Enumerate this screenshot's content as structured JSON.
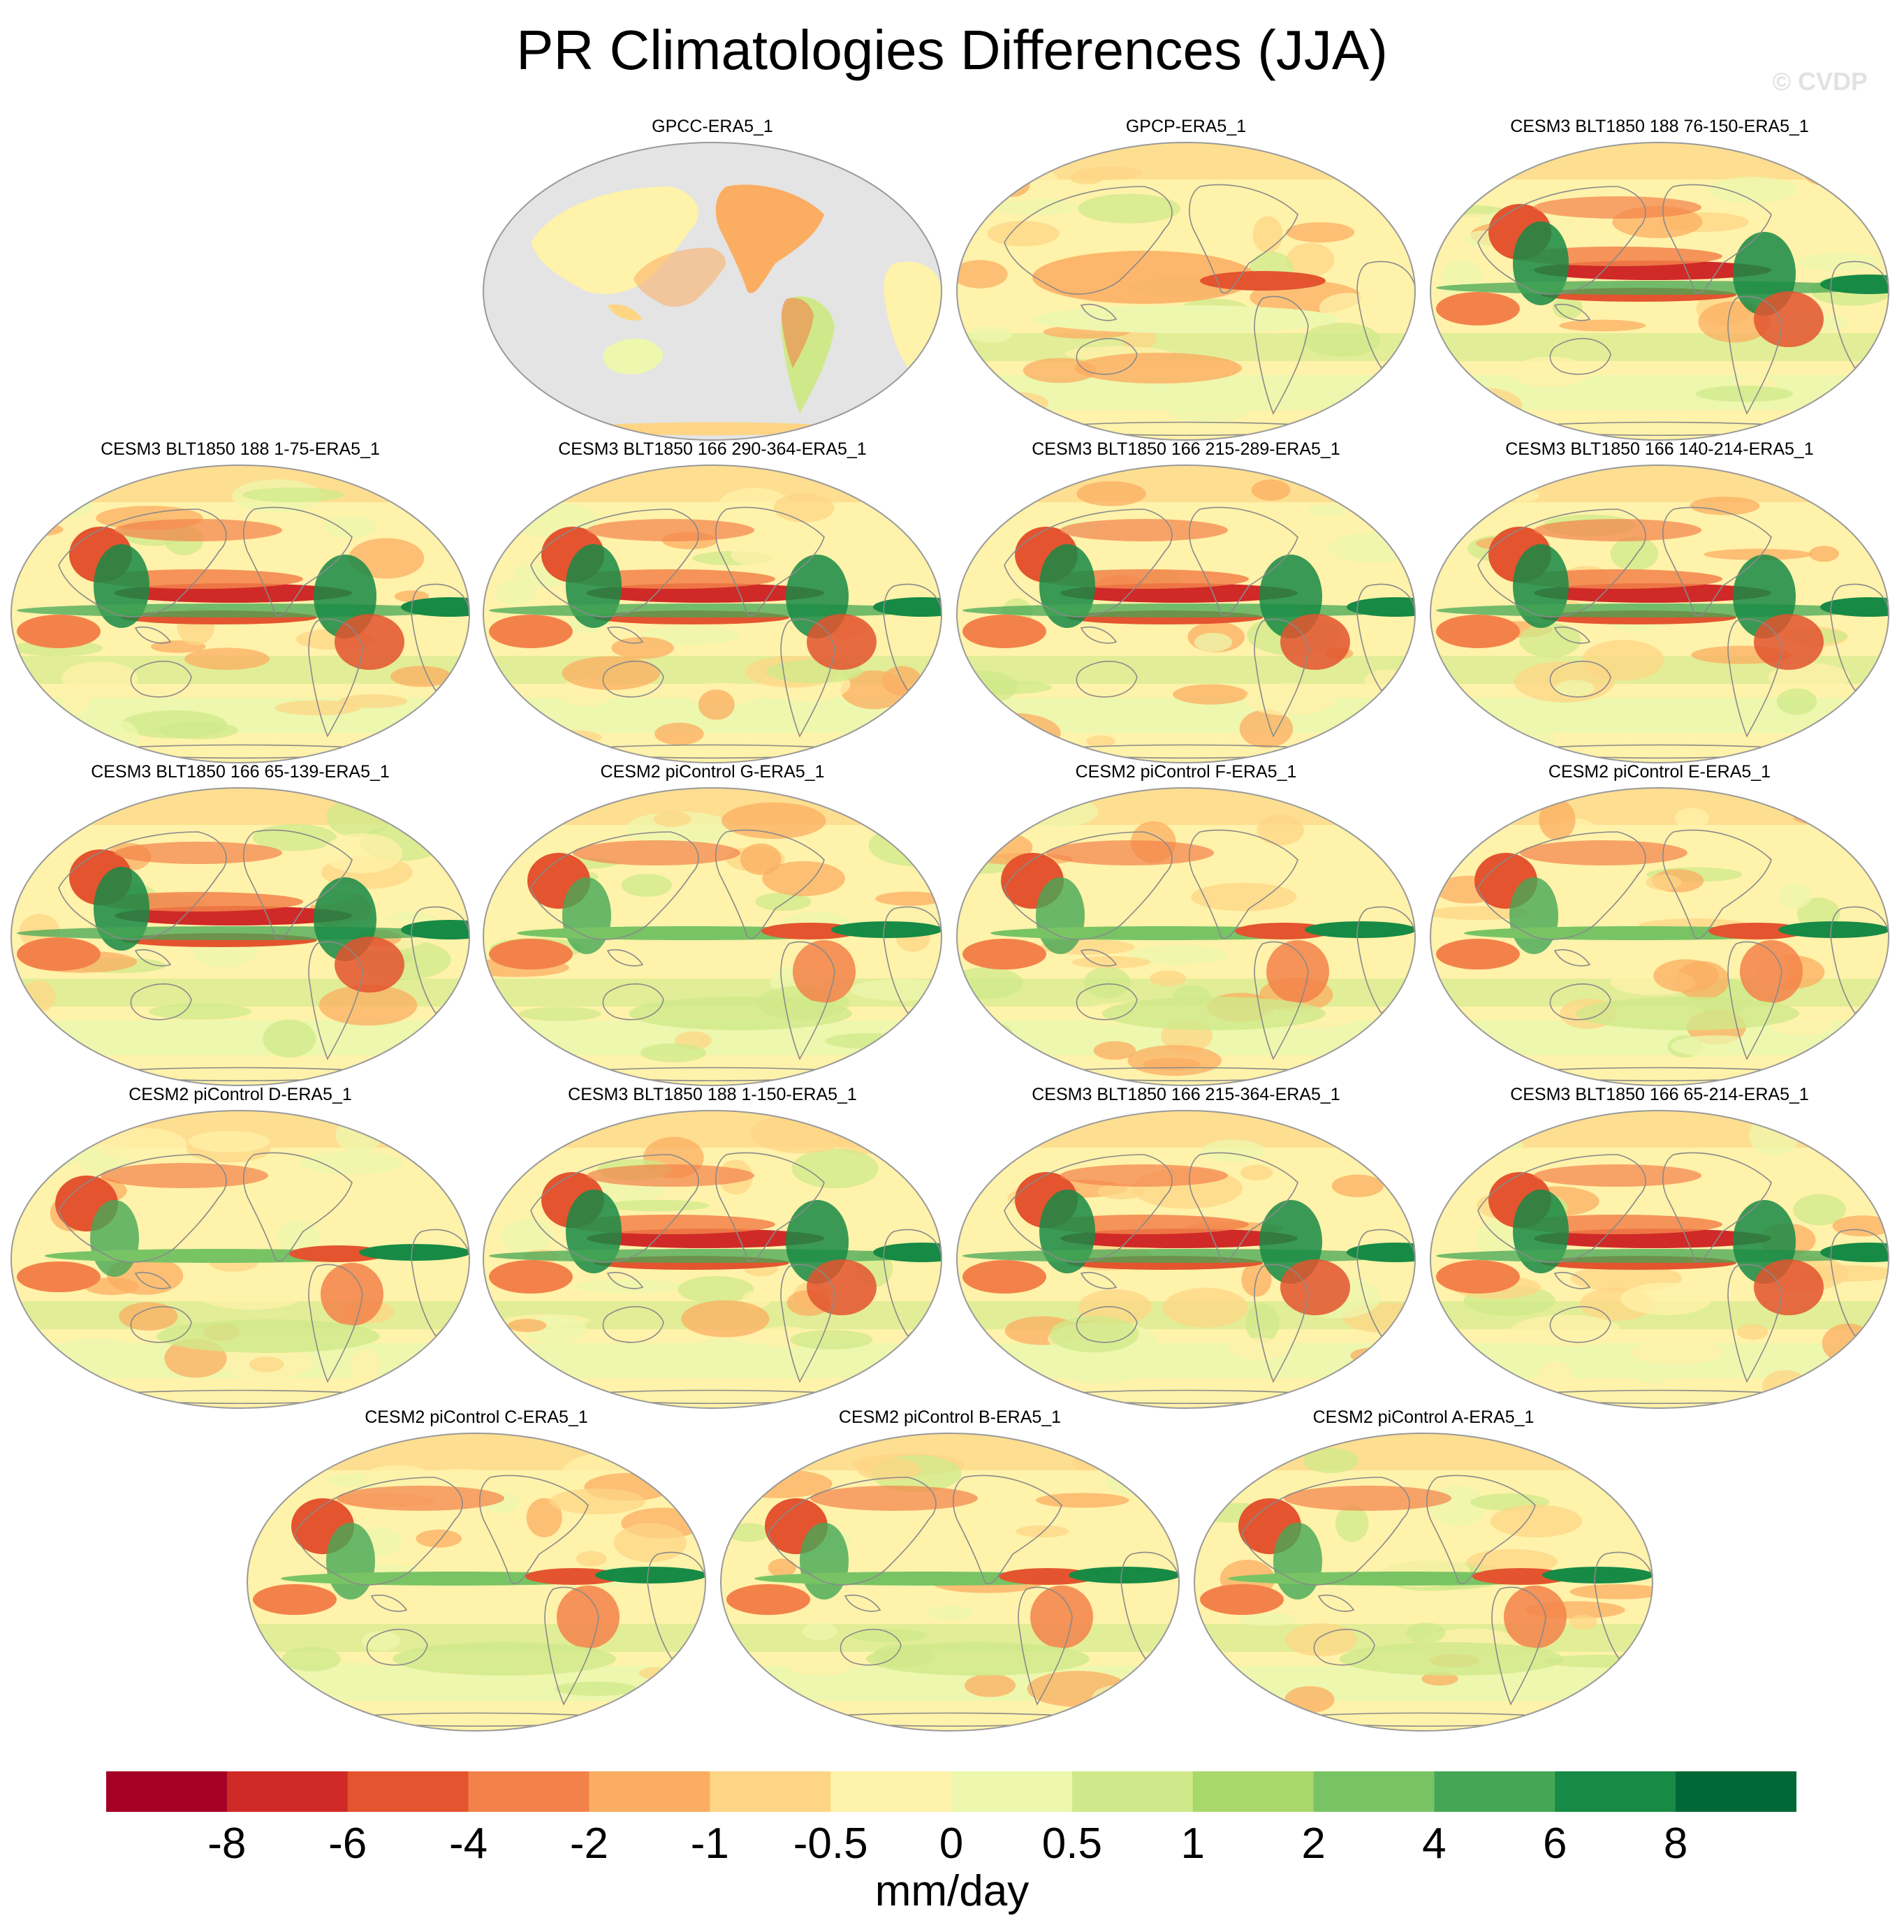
{
  "figure": {
    "title": "PR Climatologies Differences (JJA)",
    "watermark": "© CVDP"
  },
  "panels": [
    {
      "title": "GPCC-ERA5_1",
      "variant": "land"
    },
    {
      "title": "GPCP-ERA5_1",
      "variant": "gpcp"
    },
    {
      "title": "CESM3 BLT1850 188 76-150-ERA5_1",
      "variant": "cesm3"
    },
    {
      "title": "CESM3 BLT1850 188 1-75-ERA5_1",
      "variant": "cesm3"
    },
    {
      "title": "CESM3 BLT1850 166 290-364-ERA5_1",
      "variant": "cesm3"
    },
    {
      "title": "CESM3 BLT1850 166 215-289-ERA5_1",
      "variant": "cesm3"
    },
    {
      "title": "CESM3 BLT1850 166 140-214-ERA5_1",
      "variant": "cesm3"
    },
    {
      "title": "CESM3 BLT1850 166 65-139-ERA5_1",
      "variant": "cesm3"
    },
    {
      "title": "CESM2 piControl G-ERA5_1",
      "variant": "cesm2"
    },
    {
      "title": "CESM2 piControl F-ERA5_1",
      "variant": "cesm2"
    },
    {
      "title": "CESM2 piControl E-ERA5_1",
      "variant": "cesm2"
    },
    {
      "title": "CESM2 piControl D-ERA5_1",
      "variant": "cesm2"
    },
    {
      "title": "CESM3 BLT1850 188 1-150-ERA5_1",
      "variant": "cesm3"
    },
    {
      "title": "CESM3 BLT1850 166 215-364-ERA5_1",
      "variant": "cesm3"
    },
    {
      "title": "CESM3 BLT1850 166 65-214-ERA5_1",
      "variant": "cesm3"
    },
    {
      "title": "CESM2 piControl C-ERA5_1",
      "variant": "cesm2"
    },
    {
      "title": "CESM2 piControl B-ERA5_1",
      "variant": "cesm2"
    },
    {
      "title": "CESM2 piControl A-ERA5_1",
      "variant": "cesm2"
    }
  ],
  "colorbar": {
    "units": "mm/day",
    "colors": [
      "#a50026",
      "#cf2a27",
      "#e3542f",
      "#f3824a",
      "#fbad61",
      "#fdd585",
      "#fff2aa",
      "#eef7ae",
      "#cfe98a",
      "#a8d86a",
      "#78c465",
      "#45a756",
      "#178a45",
      "#006837"
    ],
    "labels": [
      "-8",
      "-6",
      "-4",
      "-2",
      "-1",
      "-0.5",
      "0",
      "0.5",
      "1",
      "2",
      "4",
      "6",
      "8"
    ]
  },
  "palette": {
    "ocean_grey": "#e4e4e4",
    "coast": "#8a8a8a",
    "map_border": "#9a9a9a"
  }
}
